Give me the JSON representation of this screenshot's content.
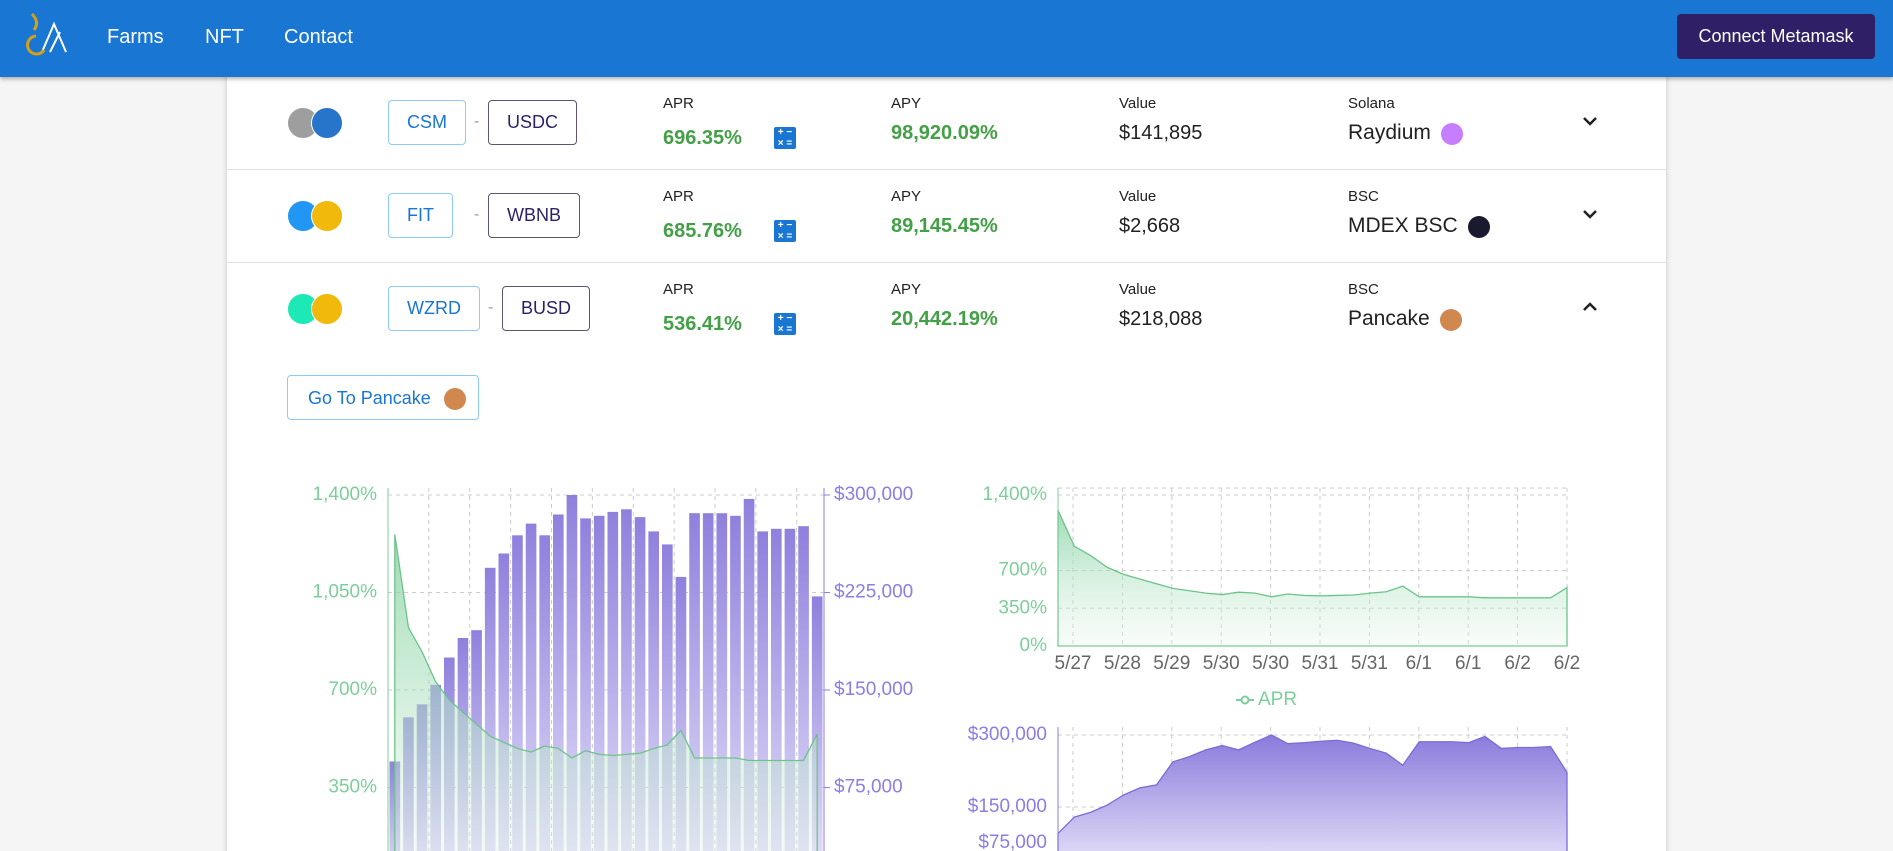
{
  "header": {
    "nav": [
      "Farms",
      "NFT",
      "Contact"
    ],
    "button": "Connect Metamask"
  },
  "separator": "-",
  "farms": [
    {
      "tokens": [
        "CSM",
        "USDC"
      ],
      "apr_label": "APR",
      "apr": "696.35%",
      "apy_label": "APY",
      "apy": "98,920.09%",
      "value_label": "Value",
      "value": "$141,895",
      "chain": "Solana",
      "dex": "Raydium"
    },
    {
      "tokens": [
        "FIT",
        "WBNB"
      ],
      "apr_label": "APR",
      "apr": "685.76%",
      "apy_label": "APY",
      "apy": "89,145.45%",
      "value_label": "Value",
      "value": "$2,668",
      "chain": "BSC",
      "dex": "MDEX BSC"
    },
    {
      "tokens": [
        "WZRD",
        "BUSD"
      ],
      "apr_label": "APR",
      "apr": "536.41%",
      "apy_label": "APY",
      "apy": "20,442.19%",
      "value_label": "Value",
      "value": "$218,088",
      "chain": "BSC",
      "dex": "Pancake"
    }
  ],
  "expanded": {
    "button": "Go To Pancake"
  },
  "history": {
    "apr": [
      1258,
      924,
      837,
      729,
      664,
      620,
      577,
      534,
      512,
      490,
      477,
      499,
      490,
      456,
      482,
      469,
      465,
      469,
      473,
      490,
      503,
      555,
      456,
      456,
      456,
      456,
      447,
      447,
      447,
      447,
      447,
      542
    ],
    "value": [
      95000,
      129000,
      139000,
      154000,
      175000,
      190000,
      196000,
      244000,
      255000,
      269000,
      278000,
      269000,
      285000,
      300000,
      282000,
      284000,
      287000,
      289000,
      283000,
      272000,
      262000,
      237000,
      286000,
      286000,
      286000,
      284000,
      297000,
      272000,
      274000,
      274000,
      276000,
      222000
    ]
  },
  "combined_chart": {
    "ylim": [
      0,
      1400
    ],
    "yticks": [
      {
        "value": 350,
        "label": "350%"
      },
      {
        "value": 700,
        "label": "700%"
      },
      {
        "value": 1050,
        "label": "1,050%"
      },
      {
        "value": 1400,
        "label": "1,400%"
      }
    ],
    "y2lim": [
      0,
      300000
    ],
    "y2ticks": [
      {
        "value": 75000,
        "label": "$75,000"
      },
      {
        "value": 150000,
        "label": "$150,000"
      },
      {
        "value": 225000,
        "label": "$225,000"
      },
      {
        "value": 300000,
        "label": "$300,000"
      }
    ]
  },
  "apr_chart": {
    "ylim": [
      0,
      1400
    ],
    "yticks": [
      {
        "value": 0,
        "label": "0%"
      },
      {
        "value": 350,
        "label": "350%"
      },
      {
        "value": 700,
        "label": "700%"
      },
      {
        "value": 1400,
        "label": "1,400%"
      }
    ],
    "xticks": [
      "5/27",
      "5/28",
      "5/29",
      "5/30",
      "5/30",
      "5/31",
      "5/31",
      "6/1",
      "6/1",
      "6/2",
      "6/2"
    ],
    "legend": "APR"
  },
  "value_chart": {
    "ylim": [
      0,
      300000
    ],
    "yticks": [
      {
        "value": 75000,
        "label": "$75,000"
      },
      {
        "value": 150000,
        "label": "$150,000"
      },
      {
        "value": 300000,
        "label": "$300,000"
      }
    ]
  }
}
